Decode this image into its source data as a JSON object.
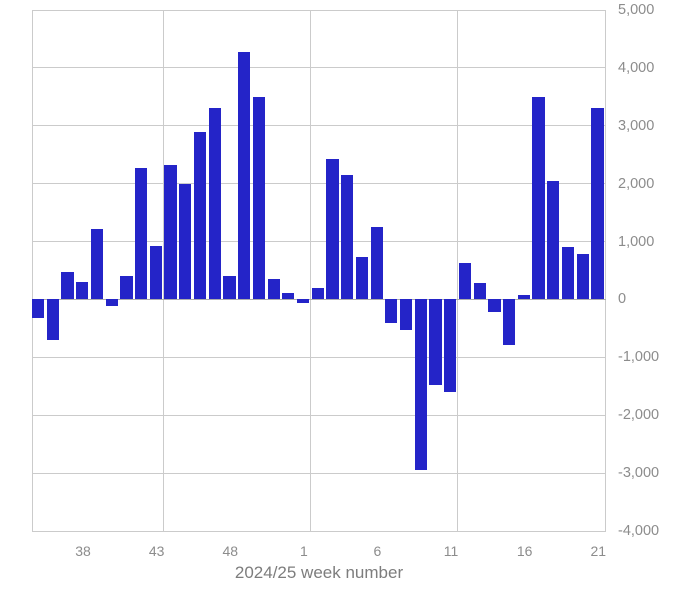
{
  "chart_data": {
    "type": "bar",
    "title": "",
    "xlabel": "2024/25 week number",
    "ylabel": "",
    "x_weeks": [
      35,
      36,
      37,
      38,
      39,
      40,
      41,
      42,
      43,
      44,
      45,
      46,
      47,
      48,
      49,
      50,
      51,
      52,
      1,
      2,
      3,
      4,
      5,
      6,
      7,
      8,
      9,
      10,
      11,
      12,
      13,
      14,
      15,
      16,
      17,
      18,
      19,
      20,
      21
    ],
    "values": [
      -320,
      -700,
      480,
      310,
      1210,
      -120,
      410,
      2270,
      930,
      2330,
      2000,
      2890,
      3300,
      400,
      4270,
      3490,
      360,
      110,
      -70,
      190,
      2420,
      2150,
      740,
      1260,
      -400,
      -530,
      -2940,
      -1470,
      -1600,
      630,
      290,
      -220,
      -790,
      70,
      3500,
      2050,
      900,
      780,
      3300
    ],
    "x_tick_labels": [
      "38",
      "43",
      "48",
      "1",
      "6",
      "11",
      "16",
      "21"
    ],
    "x_tick_bar_indices": [
      3,
      8,
      13,
      18,
      23,
      28,
      33,
      38
    ],
    "y_tick_labels": [
      "5,000",
      "4,000",
      "3,000",
      "2,000",
      "1,000",
      "0",
      "-1,000",
      "-2,000",
      "-3,000",
      "-4,000"
    ],
    "y_tick_values": [
      5000,
      4000,
      3000,
      2000,
      1000,
      0,
      -1000,
      -2000,
      -3000,
      -4000
    ],
    "ylim": [
      -4000,
      5000
    ],
    "grid": "on",
    "vgrid_after_bar_indices": [
      8,
      18,
      28
    ],
    "legend": "none",
    "colors": {
      "bar": "#2424c8",
      "gridline": "#cbcbcb",
      "zero_line": "#adadad",
      "tick_text": "#8c8c8c",
      "axis_title_text": "#7d7d7d",
      "background": "#ffffff"
    }
  }
}
